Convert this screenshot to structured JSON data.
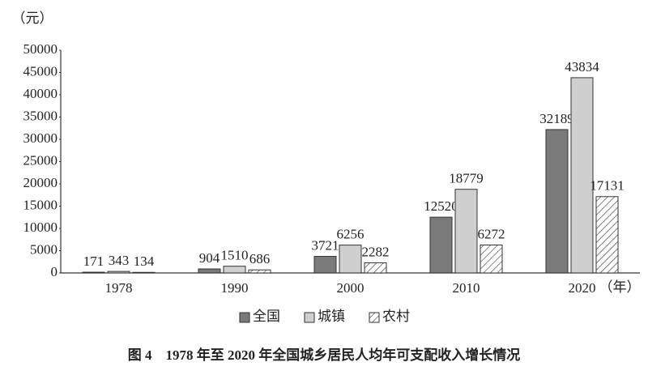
{
  "chart_data": {
    "type": "bar",
    "title": "图 4　1978 年至 2020 年全国城乡居民人均年可支配收入增长情况",
    "ylabel": "（元）",
    "xlabel": "（年）",
    "categories": [
      "1978",
      "1990",
      "2000",
      "2010",
      "2020"
    ],
    "series": [
      {
        "name": "全国",
        "color": "#7a7a7a",
        "values": [
          171,
          904,
          3721,
          12520,
          32189
        ]
      },
      {
        "name": "城镇",
        "color": "#cfcfcf",
        "values": [
          343,
          1510,
          6256,
          18779,
          43834
        ]
      },
      {
        "name": "农村",
        "color": "#ffffff",
        "hatch": true,
        "values": [
          134,
          686,
          2282,
          6272,
          17131
        ]
      }
    ],
    "ylim": [
      0,
      50000
    ],
    "yticks": [
      0,
      5000,
      10000,
      15000,
      20000,
      25000,
      30000,
      35000,
      40000,
      45000,
      50000
    ],
    "grid": false,
    "legend": "bottom"
  }
}
